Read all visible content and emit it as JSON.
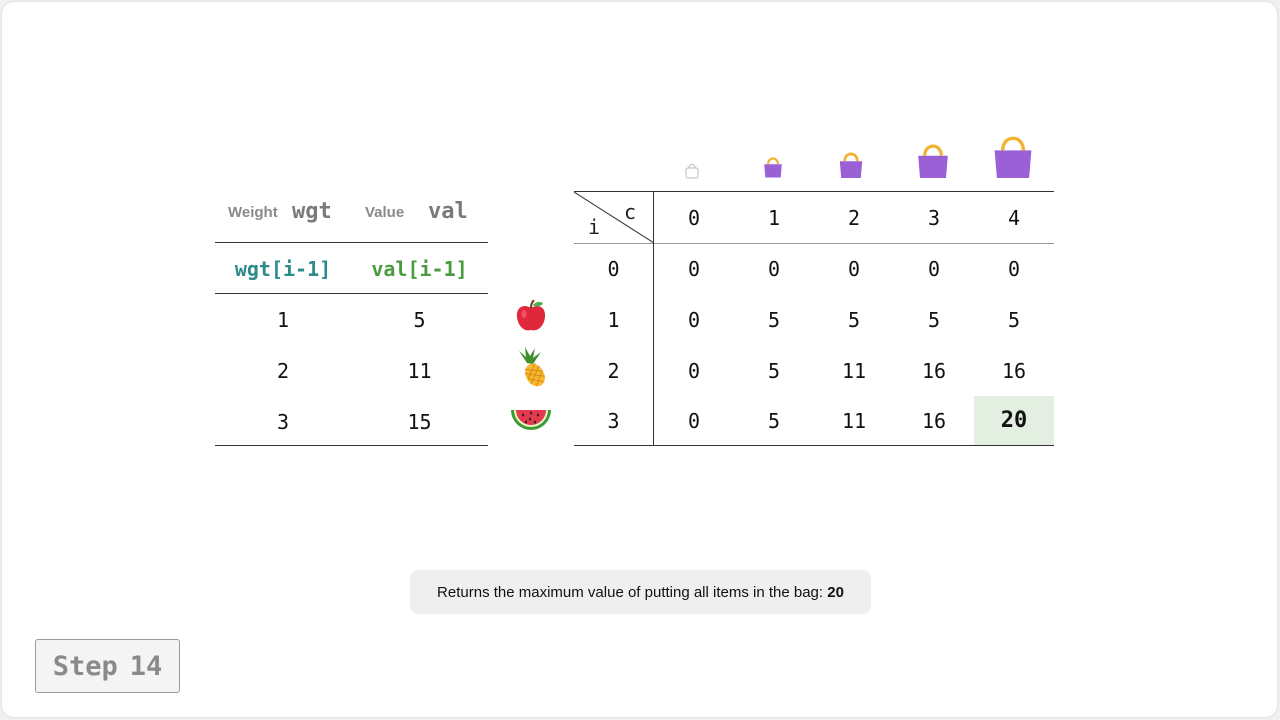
{
  "left_table": {
    "weight_label": "Weight",
    "weight_var": "wgt",
    "value_label": "Value",
    "value_var": "val",
    "wgt_expr": "wgt[i-1]",
    "val_expr": "val[i-1]",
    "rows": [
      {
        "wgt": "1",
        "val": "5",
        "item": "apple"
      },
      {
        "wgt": "2",
        "val": "11",
        "item": "pineapple"
      },
      {
        "wgt": "3",
        "val": "15",
        "item": "watermelon"
      }
    ]
  },
  "dp_table": {
    "row_axis": "i",
    "col_axis": "c",
    "capacities": [
      "0",
      "1",
      "2",
      "3",
      "4"
    ],
    "rows": [
      {
        "i": "0",
        "values": [
          "0",
          "0",
          "0",
          "0",
          "0"
        ]
      },
      {
        "i": "1",
        "values": [
          "0",
          "5",
          "5",
          "5",
          "5"
        ]
      },
      {
        "i": "2",
        "values": [
          "0",
          "5",
          "11",
          "16",
          "16"
        ]
      },
      {
        "i": "3",
        "values": [
          "0",
          "5",
          "11",
          "16",
          "20"
        ]
      }
    ],
    "highlight_color": "#e3efe1",
    "bag_color": "#9b5fd6",
    "bag_handle_color": "#f2b233"
  },
  "message": {
    "text": "Returns the maximum value of putting all items in the bag: ",
    "result": "20"
  },
  "step": {
    "word": "Step",
    "number": "14"
  }
}
